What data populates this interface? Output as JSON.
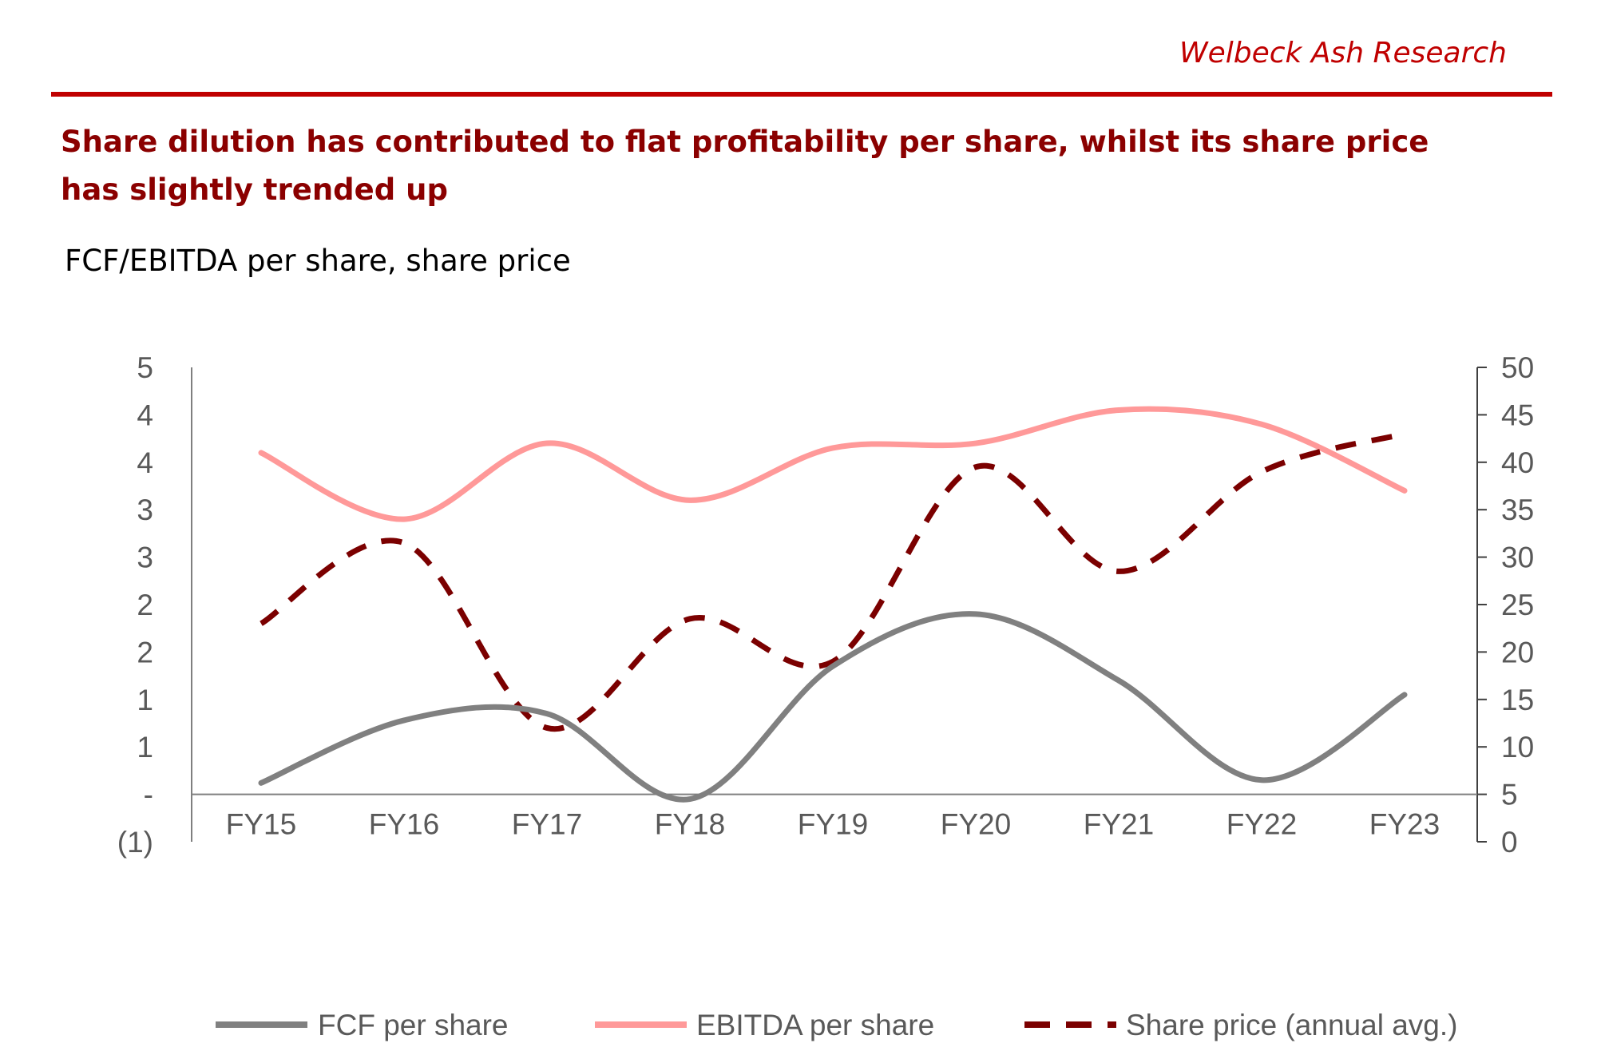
{
  "header": {
    "brand": "Welbeck Ash Research",
    "headline": "Share dilution has contributed to flat profitability per share, whilst its share price has slightly trended up",
    "subtitle": "FCF/EBITDA per share, share price"
  },
  "colors": {
    "brand_red": "#c00000",
    "headline": "#8b0000",
    "fcf": "#808080",
    "ebitda": "#ff9999",
    "share_price": "#7b0000",
    "axis": "#595959"
  },
  "chart_data": {
    "type": "line",
    "categories": [
      "FY15",
      "FY16",
      "FY17",
      "FY18",
      "FY19",
      "FY20",
      "FY21",
      "FY22",
      "FY23"
    ],
    "series": [
      {
        "name": "FCF per share",
        "axis": "left",
        "style": "solid",
        "color": "#808080",
        "values": [
          0.12,
          0.78,
          0.85,
          -0.05,
          1.35,
          1.9,
          1.2,
          0.15,
          1.05
        ]
      },
      {
        "name": "EBITDA per share",
        "axis": "left",
        "style": "solid",
        "color": "#ff9999",
        "values": [
          3.6,
          2.9,
          3.7,
          3.1,
          3.65,
          3.7,
          4.05,
          3.9,
          3.2
        ]
      },
      {
        "name": "Share price (annual avg.)",
        "axis": "right",
        "style": "dashed",
        "color": "#7b0000",
        "values": [
          23,
          31.5,
          12,
          23.5,
          19,
          39.5,
          28.5,
          39,
          43
        ]
      }
    ],
    "left_axis": {
      "ylim": [
        -0.5,
        4.5
      ],
      "ticks": [
        -0.5,
        0,
        0.5,
        1,
        1.5,
        2,
        2.5,
        3,
        3.5,
        4,
        4.5
      ],
      "tick_labels": [
        "(1)",
        "-",
        "1",
        "1",
        "2",
        "2",
        "3",
        "3",
        "4",
        "4",
        "5"
      ]
    },
    "right_axis": {
      "ylim": [
        0,
        50
      ],
      "ticks": [
        0,
        5,
        10,
        15,
        20,
        25,
        30,
        35,
        40,
        45,
        50
      ],
      "tick_labels": [
        "0",
        "5",
        "10",
        "15",
        "20",
        "25",
        "30",
        "35",
        "40",
        "45",
        "50"
      ]
    },
    "grid": false,
    "legend": "bottom"
  }
}
